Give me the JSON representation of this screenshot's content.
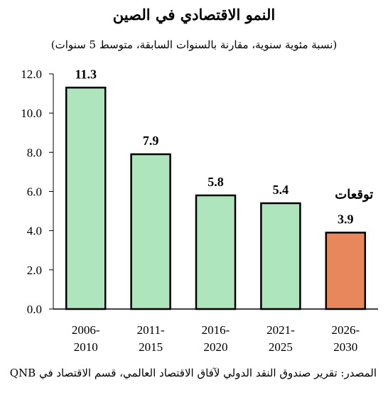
{
  "title": "النمو الاقتصادي في الصين",
  "subtitle": "(نسبة مئوية سنوية، مقارنة بالسنوات السابقة، متوسط 5 سنوات)",
  "source": "المصدر: تقرير صندوق النقد الدولي لآفاق الاقتصاد العالمي، قسم الاقتصاد في QNB",
  "colors": {
    "historical": "#aee5bd",
    "forecast": "#e8875b",
    "border": "#000000"
  },
  "chart_data": {
    "type": "bar",
    "categories": [
      [
        "2006-",
        "2010"
      ],
      [
        "2011-",
        "2015"
      ],
      [
        "2016-",
        "2020"
      ],
      [
        "2021-",
        "2025"
      ],
      [
        "2026-",
        "2030"
      ]
    ],
    "values": [
      11.3,
      7.9,
      5.8,
      5.4,
      3.9
    ],
    "data_labels": [
      "11.3",
      "7.9",
      "5.8",
      "5.4",
      "3.9"
    ],
    "forecast_index": [
      4
    ],
    "annotation": {
      "text": "توقعات",
      "category_index": 4
    },
    "ylim": [
      0,
      12
    ],
    "yticks": [
      "0.0",
      "2.0",
      "4.0",
      "6.0",
      "8.0",
      "10.0",
      "12.0"
    ],
    "grid": false,
    "legend": "none"
  }
}
